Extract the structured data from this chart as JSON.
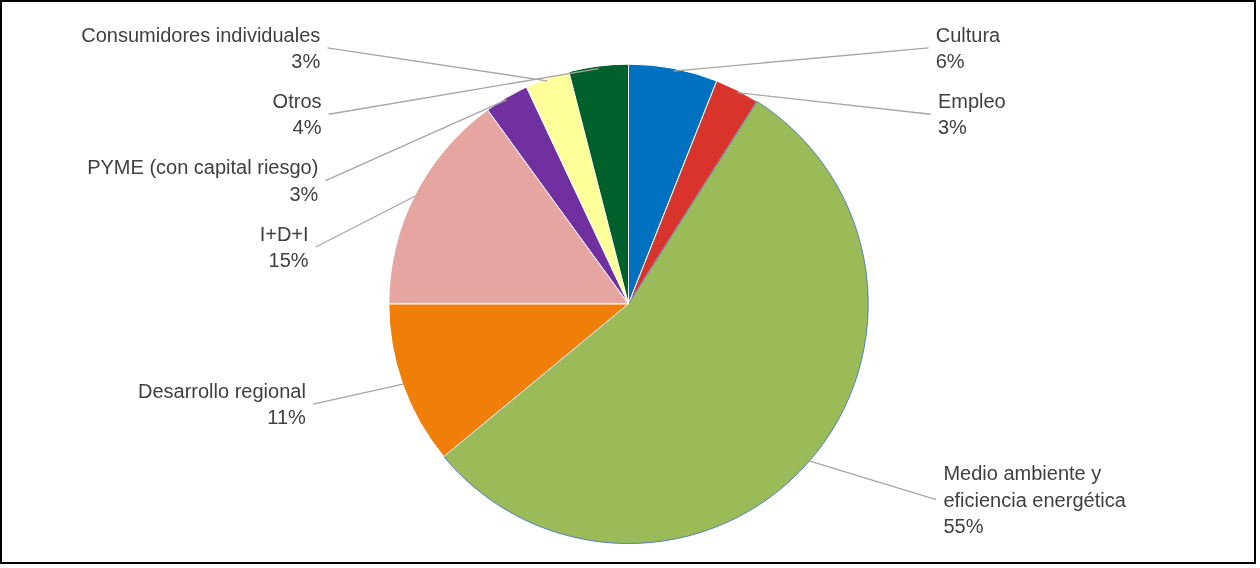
{
  "chart_data": {
    "type": "pie",
    "categories": [
      "Cultura",
      "Empleo",
      "Medio ambiente y\neficiencia energética",
      "Desarrollo regional",
      "I+D+I",
      "PYME (con capital riesgo)",
      "Consumidores individuales",
      "Otros"
    ],
    "values": [
      6,
      3,
      55,
      11,
      15,
      3,
      3,
      4
    ],
    "colors": [
      "#0070c0",
      "#d9342b",
      "#9bbb59",
      "#f07f09",
      "#e6a5a0",
      "#7030a0",
      "#ffff99",
      "#00602b"
    ],
    "value_labels": [
      "6%",
      "3%",
      "55%",
      "11%",
      "15%",
      "3%",
      "3%",
      "4%"
    ]
  }
}
